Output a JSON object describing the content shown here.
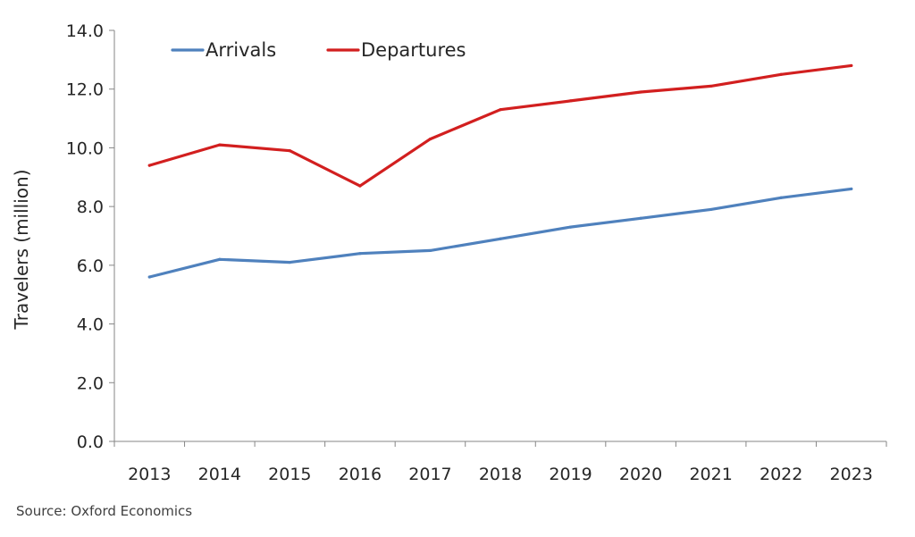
{
  "chart_data": {
    "type": "line",
    "title": "",
    "xlabel": "",
    "ylabel": "Travelers (million)",
    "categories": [
      "2013",
      "2014",
      "2015",
      "2016",
      "2017",
      "2018",
      "2019",
      "2020",
      "2021",
      "2022",
      "2023"
    ],
    "ylim": [
      0,
      14
    ],
    "yticks": [
      "0.0",
      "2.0",
      "4.0",
      "6.0",
      "8.0",
      "10.0",
      "12.0",
      "14.0"
    ],
    "grid": false,
    "legend": "top-left",
    "series": [
      {
        "name": "Arrivals",
        "color": "#4f81bd",
        "values": [
          5.6,
          6.2,
          6.1,
          6.4,
          6.5,
          6.9,
          7.3,
          7.6,
          7.9,
          8.3,
          8.6
        ]
      },
      {
        "name": "Departures",
        "color": "#d21f1f",
        "values": [
          9.4,
          10.1,
          9.9,
          8.7,
          10.3,
          11.3,
          11.6,
          11.9,
          12.1,
          12.5,
          12.8
        ]
      }
    ]
  },
  "source": "Source: Oxford Economics"
}
